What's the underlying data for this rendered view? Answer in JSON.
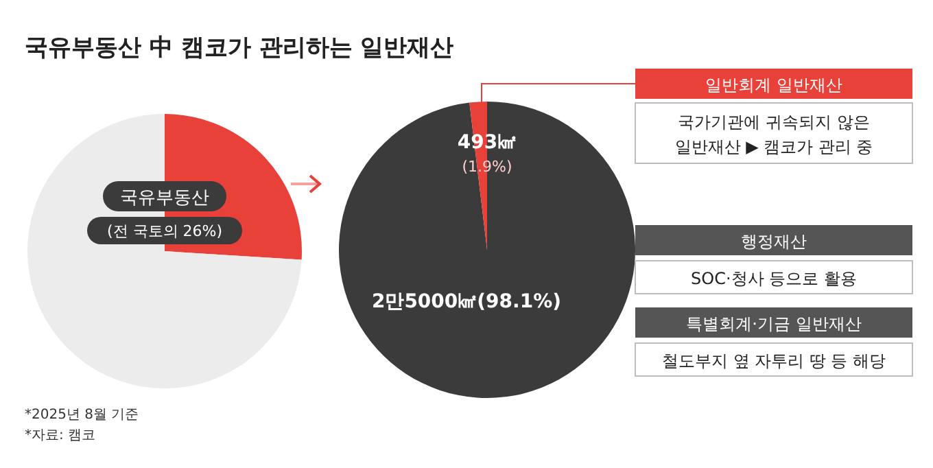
{
  "chart_data": [
    {
      "type": "pie",
      "title": "국유부동산 中 캠코가 관리하는 일반재산",
      "categories": [
        "국유부동산",
        null
      ],
      "values": [
        26,
        74
      ],
      "colors": [
        "#e8413a",
        "#ececec"
      ],
      "value_labels": [
        "(전 국토의 26%)",
        null
      ],
      "annotations": [
        "*2025년 8월 기준",
        "*자료: 캠코"
      ]
    },
    {
      "type": "pie",
      "categories": [
        null,
        null
      ],
      "values": [
        98.1,
        1.9
      ],
      "colors": [
        "#3b3b3b",
        "#e8413a"
      ],
      "value_labels": [
        "2만5000㎢(98.1%)",
        "493㎢\n(1.9%)"
      ]
    },
    {
      "type": "other",
      "annotations": [
        "일반회계 일반재산",
        "국가기관에 귀속되지 않은\n일반재산 ▶ 캠코가 관리 중",
        "행정재산",
        "SOC·청사 등으로 활용",
        "특별회계·기금 일반재산",
        "철도부지 옆 자투리 땅 등 해당"
      ]
    }
  ]
}
